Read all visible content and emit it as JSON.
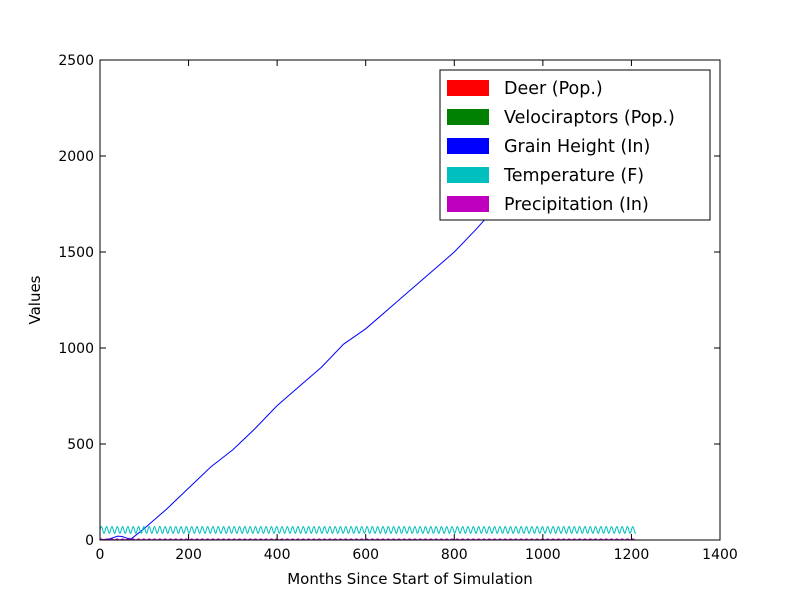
{
  "chart_data": {
    "type": "line",
    "title": "",
    "xlabel": "Months Since Start of Simulation",
    "ylabel": "Values",
    "xlim": [
      0,
      1400
    ],
    "ylim": [
      0,
      2500
    ],
    "xticks": [
      "0",
      "200",
      "400",
      "600",
      "800",
      "1000",
      "1200",
      "1400"
    ],
    "yticks": [
      "0",
      "500",
      "1000",
      "1500",
      "2000",
      "2500"
    ],
    "grid": false,
    "legend_position": "top-right",
    "series": [
      {
        "name": "Deer (Pop.)",
        "color": "#ff0000",
        "x": [
          0,
          200,
          400,
          600,
          800,
          1000,
          1210
        ],
        "y": [
          0,
          0,
          0,
          0,
          0,
          0,
          0
        ]
      },
      {
        "name": "Velociraptors (Pop.)",
        "color": "#008000",
        "x": [
          0,
          200,
          400,
          600,
          800,
          1000,
          1210
        ],
        "y": [
          0,
          0,
          0,
          0,
          0,
          0,
          0
        ]
      },
      {
        "name": "Grain Height (In)",
        "color": "#0000ff",
        "x": [
          0,
          20,
          40,
          50,
          60,
          70,
          100,
          150,
          200,
          250,
          300,
          350,
          400,
          450,
          500,
          550,
          600,
          650,
          700,
          750,
          800,
          850,
          900
        ],
        "y": [
          0,
          5,
          20,
          18,
          10,
          5,
          60,
          160,
          270,
          380,
          470,
          580,
          700,
          800,
          900,
          1020,
          1100,
          1200,
          1300,
          1400,
          1500,
          1620,
          1750
        ]
      },
      {
        "name": "Temperature (F)",
        "color": "#00bfbf",
        "oscillation": {
          "x_start": 0,
          "x_end": 1210,
          "period": 12,
          "min": 35,
          "max": 70
        }
      },
      {
        "name": "Precipitation (In)",
        "color": "#bf00bf",
        "oscillation": {
          "x_start": 0,
          "x_end": 1210,
          "period": 12,
          "min": 0,
          "max": 6
        }
      }
    ]
  }
}
